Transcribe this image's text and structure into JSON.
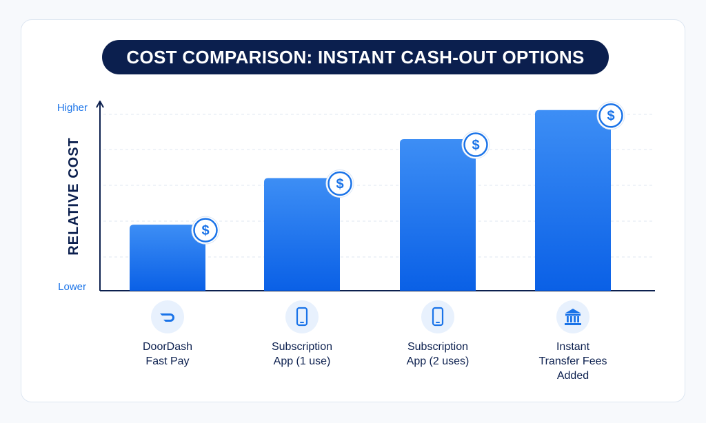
{
  "title": "COST COMPARISON: INSTANT CASH-OUT OPTIONS",
  "colors": {
    "navy": "#0b1f4e",
    "bar_top": "#3d8ef5",
    "bar_bottom": "#0a60e6",
    "accent": "#1a73e8",
    "icon_bg": "#e8f1fd"
  },
  "chart_data": {
    "type": "bar",
    "title": "COST COMPARISON: INSTANT CASH-OUT OPTIONS",
    "ylabel": "RELATIVE COST",
    "y_top_label": "Higher",
    "y_bottom_label": "Lower",
    "ylim": [
      0,
      5
    ],
    "grid": true,
    "categories": [
      "DoorDash\nFast Pay",
      "Subscription\nApp (1 use)",
      "Subscription\nApp (2 uses)",
      "Instant\nTransfer Fees\nAdded"
    ],
    "values": [
      1.7,
      2.9,
      3.9,
      4.65
    ],
    "bar_badge_icon": "dollar-icon",
    "category_icons": [
      "doordash-logo-icon",
      "smartphone-icon",
      "smartphone-icon",
      "bank-icon"
    ]
  }
}
